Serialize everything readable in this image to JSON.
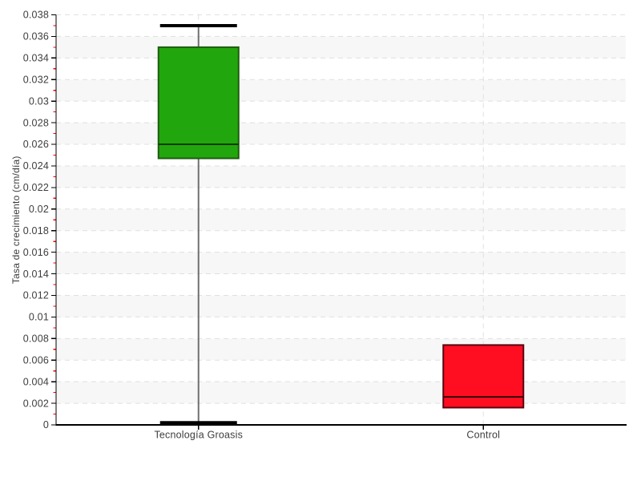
{
  "page": {
    "background": "#ffffff"
  },
  "chart_data": {
    "type": "box",
    "title": "",
    "xlabel": "",
    "ylabel": "Tasa de crecimiento (cm/día)",
    "ylim": [
      0,
      0.038
    ],
    "ytick_step": 0.002,
    "yminor_step": 0.001,
    "ytick_labels": [
      "0",
      "0.002",
      "0.004",
      "0.006",
      "0.008",
      "0.01",
      "0.012",
      "0.014",
      "0.016",
      "0.018",
      "0.02",
      "0.022",
      "0.024",
      "0.026",
      "0.028",
      "0.03",
      "0.032",
      "0.034",
      "0.036",
      "0.038"
    ],
    "categories": [
      "Tecnología Groasis",
      "Control"
    ],
    "series": [
      {
        "name": "Tecnología Groasis",
        "min": 0.0002,
        "q1": 0.0247,
        "median": 0.026,
        "q3": 0.035,
        "max": 0.037,
        "fill": "#22a60d",
        "stroke": "#1e5c12",
        "median_color": "#0f3a06",
        "show_whiskers": true
      },
      {
        "name": "Control",
        "min": 0.0016,
        "q1": 0.0016,
        "median": 0.0026,
        "q3": 0.0074,
        "max": 0.0074,
        "fill": "#ff0d20",
        "stroke": "#5a0410",
        "median_color": "#3a030a",
        "show_whiskers": false
      }
    ],
    "grid": {
      "band_color": "#f7f7f7",
      "line_color": "#e0e0e0",
      "dash": "6 5"
    },
    "axis": {
      "line_color": "#000000",
      "tick_color": "#000000",
      "minor_tick_color": "#ff0000",
      "label_color": "#3d3d3d"
    },
    "whisker": {
      "stem_color": "#707070",
      "cap_color": "#000000"
    },
    "legend_position": "none"
  }
}
